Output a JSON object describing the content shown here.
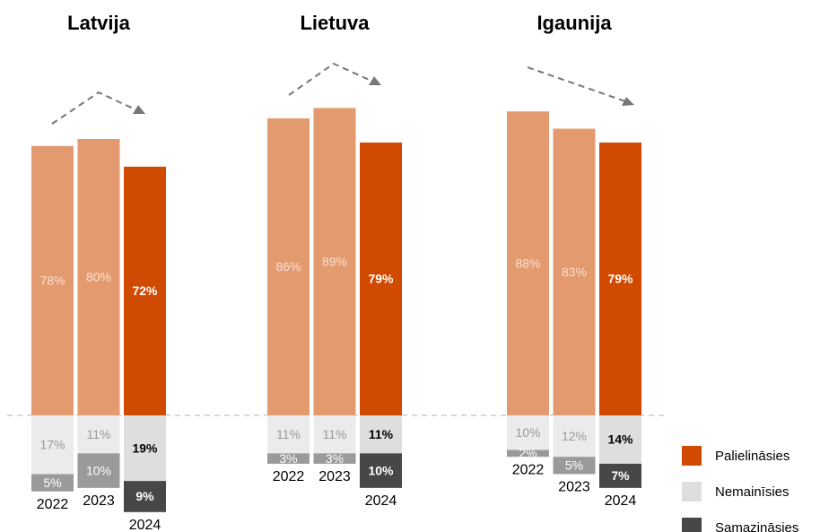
{
  "chart_data": {
    "type": "bar",
    "groups": [
      "Latvija",
      "Lietuva",
      "Igaunija"
    ],
    "categories": [
      "2022",
      "2023",
      "2024",
      "2022",
      "2023",
      "2024",
      "2022",
      "2023",
      "2024"
    ],
    "series": [
      {
        "name": "Palielināsies",
        "color": "#d04a02",
        "direction": "up",
        "colors": [
          "#e39a6f",
          "#e39a6f",
          "#d04a02",
          "#e39a6f",
          "#e39a6f",
          "#d04a02",
          "#e39a6f",
          "#e39a6f",
          "#d04a02"
        ],
        "values": [
          78,
          80,
          72,
          86,
          89,
          79,
          88,
          83,
          79
        ],
        "value_labels": [
          "78%",
          "80%",
          "72%",
          "86%",
          "89%",
          "79%",
          "88%",
          "83%",
          "79%"
        ]
      },
      {
        "name": "Nemainīsies",
        "color": "#dedede",
        "direction": "down",
        "colors": [
          "#ebebeb",
          "#ebebeb",
          "#dedede",
          "#ebebeb",
          "#ebebeb",
          "#dedede",
          "#ebebeb",
          "#ebebeb",
          "#dedede"
        ],
        "values": [
          17,
          11,
          19,
          11,
          11,
          11,
          10,
          12,
          14
        ],
        "value_labels": [
          "17%",
          "11%",
          "19%",
          "11%",
          "11%",
          "11%",
          "10%",
          "12%",
          "14%"
        ]
      },
      {
        "name": "Samazināsies",
        "color": "#474747",
        "direction": "down",
        "colors": [
          "#9a9a9a",
          "#9a9a9a",
          "#474747",
          "#9a9a9a",
          "#9a9a9a",
          "#474747",
          "#9a9a9a",
          "#9a9a9a",
          "#474747"
        ],
        "values": [
          5,
          10,
          9,
          3,
          3,
          10,
          2,
          5,
          7
        ],
        "value_labels": [
          "5%",
          "10%",
          "9%",
          "3%",
          "3%",
          "10%",
          "2%",
          "5%",
          "7%"
        ]
      }
    ]
  }
}
